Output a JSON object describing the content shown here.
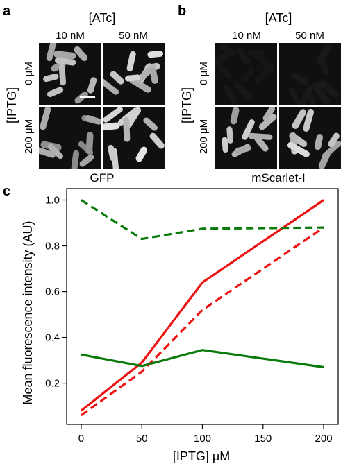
{
  "colors": {
    "red": "#ee1111",
    "green": "#0a7a0a",
    "micro_background": "#101010",
    "cell": "#b5b5b5"
  },
  "panel_a": {
    "letter": "a",
    "header": "[ATc]",
    "col_labels": [
      "10 nM",
      "50 nM"
    ],
    "row_header": "[IPTG]",
    "row_labels": [
      "0 μM",
      "200 μM"
    ],
    "caption": "GFP",
    "scale_bar": true,
    "brightness": [
      [
        0.75,
        0.85
      ],
      [
        0.65,
        0.85
      ]
    ]
  },
  "panel_b": {
    "letter": "b",
    "header": "[ATc]",
    "col_labels": [
      "10 nM",
      "50 nM"
    ],
    "row_header": "[IPTG]",
    "row_labels": [
      "0 μM",
      "200 μM"
    ],
    "caption": "mScarlet-I",
    "brightness": [
      [
        0.02,
        0.03
      ],
      [
        0.75,
        0.8
      ]
    ]
  },
  "panel_c": {
    "letter": "c"
  },
  "chart_data": {
    "type": "line",
    "xlabel": "[IPTG] μM",
    "ylabel": "Mean fluorescence intensity (AU)",
    "xlim": [
      -12,
      212
    ],
    "ylim": [
      0.02,
      1.05
    ],
    "xticks": [
      0,
      50,
      100,
      150,
      200
    ],
    "yticks": [
      0.2,
      0.4,
      0.6,
      0.8,
      1.0
    ],
    "ytick_labels": [
      "0.2",
      "0.4",
      "0.6",
      "0.8",
      "1.0"
    ],
    "grid": false,
    "x": [
      0,
      50,
      100,
      200
    ],
    "series": [
      {
        "color": "#ee1111",
        "style": "solid",
        "values": [
          0.08,
          0.29,
          0.64,
          1.0
        ]
      },
      {
        "color": "#ee1111",
        "style": "dashed",
        "values": [
          0.06,
          0.25,
          0.52,
          0.88
        ]
      },
      {
        "color": "#0a7a0a",
        "style": "dashed",
        "values": [
          1.0,
          0.83,
          0.875,
          0.88
        ]
      },
      {
        "color": "#0a7a0a",
        "style": "solid",
        "values": [
          0.325,
          0.275,
          0.345,
          0.27
        ]
      }
    ]
  }
}
